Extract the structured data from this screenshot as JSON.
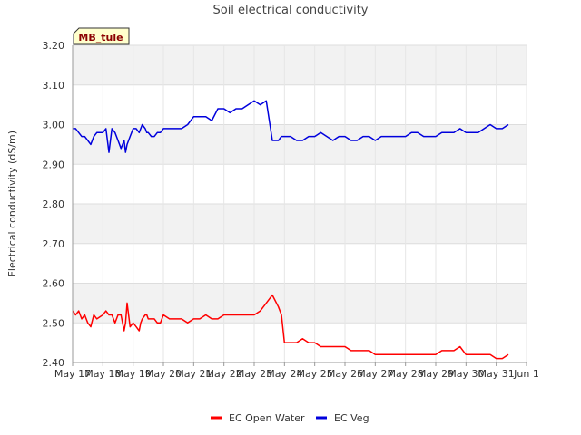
{
  "chart_data": {
    "type": "line",
    "title": "Soil electrical conductivity",
    "station_label": "MB_tule",
    "xlabel": "",
    "ylabel": "Electrical conductivity (dS/m)",
    "ylim": [
      2.4,
      3.2
    ],
    "yticks": [
      "2.40",
      "2.50",
      "2.60",
      "2.70",
      "2.80",
      "2.90",
      "3.00",
      "3.10",
      "3.20"
    ],
    "xlim": [
      0,
      15
    ],
    "xticks": [
      "May 17",
      "May 18",
      "May 19",
      "May 20",
      "May 21",
      "May 22",
      "May 23",
      "May 24",
      "May 25",
      "May 26",
      "May 27",
      "May 28",
      "May 29",
      "May 30",
      "May 31",
      "Jun 1"
    ],
    "grid": true,
    "legend_position": "bottom",
    "colors": {
      "EC Open Water": "#ff0000",
      "EC Veg": "#0000dd"
    },
    "series": [
      {
        "name": "EC Open Water",
        "x": [
          0.0,
          0.1,
          0.2,
          0.3,
          0.4,
          0.5,
          0.6,
          0.7,
          0.8,
          1.0,
          1.1,
          1.2,
          1.3,
          1.4,
          1.5,
          1.6,
          1.7,
          1.75,
          1.8,
          1.9,
          2.0,
          2.1,
          2.2,
          2.25,
          2.3,
          2.4,
          2.45,
          2.5,
          2.6,
          2.7,
          2.8,
          2.9,
          3.0,
          3.2,
          3.4,
          3.6,
          3.8,
          4.0,
          4.2,
          4.4,
          4.6,
          4.8,
          5.0,
          5.2,
          5.4,
          5.6,
          5.8,
          6.0,
          6.2,
          6.4,
          6.6,
          6.8,
          6.9,
          7.0,
          7.2,
          7.4,
          7.6,
          7.8,
          8.0,
          8.2,
          8.4,
          8.6,
          8.8,
          9.0,
          9.2,
          9.4,
          9.6,
          9.8,
          10.0,
          10.2,
          10.4,
          10.6,
          10.8,
          11.0,
          11.2,
          11.4,
          11.6,
          11.8,
          12.0,
          12.2,
          12.4,
          12.6,
          12.8,
          13.0,
          13.2,
          13.4,
          13.6,
          13.8,
          14.0,
          14.2,
          14.4
        ],
        "y": [
          2.53,
          2.52,
          2.53,
          2.51,
          2.52,
          2.5,
          2.49,
          2.52,
          2.51,
          2.52,
          2.53,
          2.52,
          2.52,
          2.5,
          2.52,
          2.52,
          2.48,
          2.5,
          2.55,
          2.49,
          2.5,
          2.49,
          2.48,
          2.5,
          2.51,
          2.52,
          2.52,
          2.51,
          2.51,
          2.51,
          2.5,
          2.5,
          2.52,
          2.51,
          2.51,
          2.51,
          2.5,
          2.51,
          2.51,
          2.52,
          2.51,
          2.51,
          2.52,
          2.52,
          2.52,
          2.52,
          2.52,
          2.52,
          2.53,
          2.55,
          2.57,
          2.54,
          2.52,
          2.45,
          2.45,
          2.45,
          2.46,
          2.45,
          2.45,
          2.44,
          2.44,
          2.44,
          2.44,
          2.44,
          2.43,
          2.43,
          2.43,
          2.43,
          2.42,
          2.42,
          2.42,
          2.42,
          2.42,
          2.42,
          2.42,
          2.42,
          2.42,
          2.42,
          2.42,
          2.43,
          2.43,
          2.43,
          2.44,
          2.42,
          2.42,
          2.42,
          2.42,
          2.42,
          2.41,
          2.41,
          2.42
        ]
      },
      {
        "name": "EC Veg",
        "x": [
          0.0,
          0.1,
          0.2,
          0.3,
          0.4,
          0.5,
          0.6,
          0.7,
          0.8,
          1.0,
          1.1,
          1.2,
          1.3,
          1.4,
          1.5,
          1.6,
          1.7,
          1.75,
          1.8,
          1.9,
          2.0,
          2.1,
          2.2,
          2.25,
          2.3,
          2.4,
          2.45,
          2.5,
          2.6,
          2.7,
          2.8,
          2.9,
          3.0,
          3.2,
          3.4,
          3.6,
          3.8,
          4.0,
          4.2,
          4.4,
          4.6,
          4.8,
          5.0,
          5.2,
          5.4,
          5.6,
          5.8,
          6.0,
          6.2,
          6.4,
          6.6,
          6.8,
          6.9,
          7.0,
          7.2,
          7.4,
          7.6,
          7.8,
          8.0,
          8.2,
          8.4,
          8.6,
          8.8,
          9.0,
          9.2,
          9.4,
          9.6,
          9.8,
          10.0,
          10.2,
          10.4,
          10.6,
          10.8,
          11.0,
          11.2,
          11.4,
          11.6,
          11.8,
          12.0,
          12.2,
          12.4,
          12.6,
          12.8,
          13.0,
          13.2,
          13.4,
          13.6,
          13.8,
          14.0,
          14.2,
          14.4
        ],
        "y": [
          2.99,
          2.99,
          2.98,
          2.97,
          2.97,
          2.96,
          2.95,
          2.97,
          2.98,
          2.98,
          2.99,
          2.93,
          2.99,
          2.98,
          2.96,
          2.94,
          2.96,
          2.93,
          2.95,
          2.97,
          2.99,
          2.99,
          2.98,
          2.99,
          3.0,
          2.99,
          2.98,
          2.98,
          2.97,
          2.97,
          2.98,
          2.98,
          2.99,
          2.99,
          2.99,
          2.99,
          3.0,
          3.02,
          3.02,
          3.02,
          3.01,
          3.04,
          3.04,
          3.03,
          3.04,
          3.04,
          3.05,
          3.06,
          3.05,
          3.06,
          2.96,
          2.96,
          2.97,
          2.97,
          2.97,
          2.96,
          2.96,
          2.97,
          2.97,
          2.98,
          2.97,
          2.96,
          2.97,
          2.97,
          2.96,
          2.96,
          2.97,
          2.97,
          2.96,
          2.97,
          2.97,
          2.97,
          2.97,
          2.97,
          2.98,
          2.98,
          2.97,
          2.97,
          2.97,
          2.98,
          2.98,
          2.98,
          2.99,
          2.98,
          2.98,
          2.98,
          2.99,
          3.0,
          2.99,
          2.99,
          3.0
        ]
      }
    ]
  }
}
